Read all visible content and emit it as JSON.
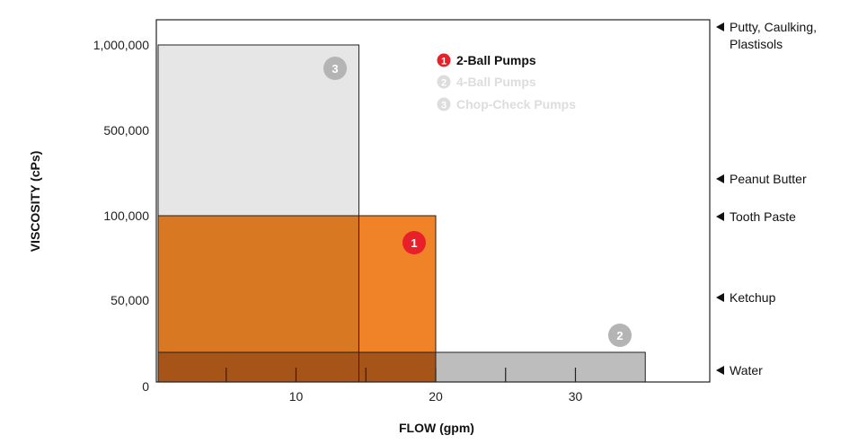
{
  "chart_data": {
    "type": "bar",
    "xlabel": "FLOW (gpm)",
    "ylabel": "VISCOSITY (cPs)",
    "x_ticks": [
      {
        "value": 10,
        "label": "10"
      },
      {
        "value": 20,
        "label": "20"
      },
      {
        "value": 30,
        "label": "30"
      }
    ],
    "y_ticks": [
      "0",
      "50,000",
      "100,000",
      "500,000",
      "1,000,000"
    ],
    "series": [
      {
        "name": "Chop-Check Pumps",
        "badge": "3",
        "flow_max": 14.5,
        "viscosity_max": "1,000,000",
        "color": "#e6e6e6"
      },
      {
        "name": "2-Ball Pumps",
        "badge": "1",
        "flow_max": 20,
        "viscosity_max": "100,000",
        "color": "#f08228"
      },
      {
        "name": "4-Ball Pumps",
        "badge": "2",
        "flow_max": 35,
        "viscosity_max": "Water",
        "color": "#bdbdbd"
      }
    ],
    "legend": [
      {
        "badge": "1",
        "label": "2-Ball Pumps",
        "active": true
      },
      {
        "badge": "2",
        "label": "4-Ball Pumps",
        "active": false
      },
      {
        "badge": "3",
        "label": "Chop-Check Pumps",
        "active": false
      }
    ],
    "reference_labels": [
      {
        "line1": "Putty, Caulking,",
        "line2": "Plastisols"
      },
      {
        "line1": "Peanut Butter",
        "line2": ""
      },
      {
        "line1": "Tooth Paste",
        "line2": ""
      },
      {
        "line1": "Ketchup",
        "line2": ""
      },
      {
        "line1": "Water",
        "line2": ""
      }
    ],
    "colors": {
      "active_badge": "#e8202a",
      "inactive": "#dddddd",
      "badge_gray": "#b4b4b4",
      "overlap_dark": "#d87822",
      "overlap_darker": "#a65418"
    }
  }
}
